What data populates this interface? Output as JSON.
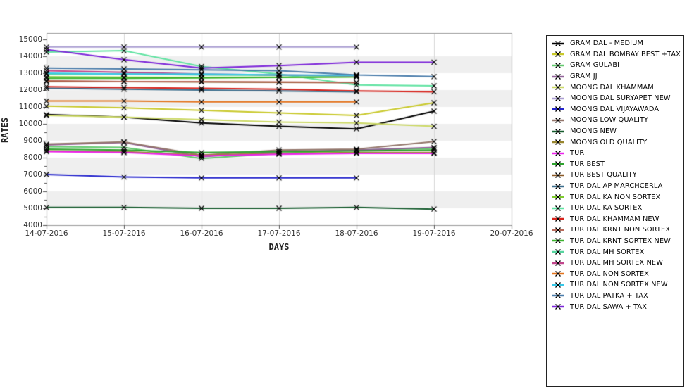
{
  "chart_data": {
    "type": "line",
    "title": "",
    "xlabel": "DAYS",
    "ylabel": "RATES",
    "ylim": [
      4000,
      15000
    ],
    "y_tick_step": 1000,
    "y_ticks": [
      "4000",
      "5000",
      "6000",
      "7000",
      "8000",
      "9000",
      "10000",
      "11000",
      "12000",
      "13000",
      "14000",
      "15000"
    ],
    "x_ticks": [
      "14-07-2016",
      "15-07-2016",
      "16-07-2016",
      "17-07-2016",
      "18-07-2016",
      "19-07-2016",
      "20-07-2016"
    ],
    "x": [
      "14-07-2016",
      "15-07-2016",
      "16-07-2016",
      "17-07-2016",
      "18-07-2016",
      "19-07-2016"
    ],
    "grid": "alternating horizontal bands, vertical gridlines per day",
    "legend_position": "right, boxed, clipped at bottom",
    "marker": {
      "shape": "x",
      "color": "#000000"
    },
    "colors": {
      "band_gray": "#efefef",
      "plot_border": "#9a9a9a",
      "vertical_gridline": "#d6d6d6",
      "axis_tick": "#555555",
      "legend_border": "#222222"
    },
    "series": [
      {
        "name": "GRAM DAL - MEDIUM",
        "color": "#000000",
        "values": [
          10550,
          10400,
          10050,
          9850,
          9700,
          10750
        ]
      },
      {
        "name": "GRAM DAL BOMBAY BEST +TAX",
        "color": "#c9c92a",
        "values": [
          11050,
          10950,
          10800,
          10650,
          10500,
          11250
        ]
      },
      {
        "name": "GRAM GULABI",
        "color": "#63c96f",
        "values": [
          8650,
          8600,
          7950,
          8250,
          8450,
          8550
        ]
      },
      {
        "name": "GRAM JJ",
        "color": "#93639a",
        "values": [
          8750,
          8900,
          8050,
          8350,
          8450,
          8600
        ]
      },
      {
        "name": "MOONG DAL KHAMMAM",
        "color": "#ccd966",
        "values": [
          10500,
          10400,
          10250,
          10100,
          10050,
          9850
        ]
      },
      {
        "name": "MOONG DAL SURYAPET NEW",
        "color": "#ab9ed2",
        "values": [
          14550,
          14550,
          14550,
          14550,
          14550,
          null
        ]
      },
      {
        "name": "MOONG DAL VIJAYAWADA",
        "color": "#2424cc",
        "values": [
          7000,
          6850,
          6800,
          6800,
          6800,
          null
        ]
      },
      {
        "name": "MOONG LOW QUALITY",
        "color": "#94766b",
        "values": [
          8800,
          8930,
          8150,
          8450,
          8500,
          8950
        ]
      },
      {
        "name": "MOONG NEW",
        "color": "#175c2e",
        "values": [
          5050,
          5050,
          5000,
          5000,
          5050,
          4950
        ]
      },
      {
        "name": "MOONG OLD QUALITY",
        "color": "#99862e",
        "values": [
          8400,
          8350,
          8150,
          8250,
          8300,
          8300
        ]
      },
      {
        "name": "TUR",
        "color": "#ee22ee",
        "values": [
          8350,
          8300,
          8100,
          8200,
          8250,
          8250
        ]
      },
      {
        "name": "TUR BEST",
        "color": "#2da32d",
        "values": [
          8500,
          8450,
          8300,
          8350,
          8400,
          8450
        ]
      },
      {
        "name": "TUR BEST QUALITY",
        "color": "#8a5a28",
        "values": [
          12500,
          12500,
          12480,
          12460,
          12440,
          null
        ]
      },
      {
        "name": "TUR DAL AP MARCHCERLA",
        "color": "#3a6d8c",
        "values": [
          12100,
          12050,
          12000,
          11950,
          11900,
          null
        ]
      },
      {
        "name": "TUR DAL KA NON SORTEX",
        "color": "#7ecb2d",
        "values": [
          12780,
          12760,
          12750,
          12760,
          12780,
          null
        ]
      },
      {
        "name": "TUR DAL KA SORTEX",
        "color": "#5fe3a1",
        "values": [
          14250,
          14330,
          13400,
          12950,
          12300,
          12250
        ]
      },
      {
        "name": "TUR DAL KHAMMAM NEW",
        "color": "#d8231c",
        "values": [
          12200,
          12150,
          12100,
          12050,
          11950,
          11900
        ]
      },
      {
        "name": "TUR DAL KRNT NON SORTEX",
        "color": "#b96a5a",
        "values": [
          12550,
          12500,
          12500,
          12480,
          12450,
          null
        ]
      },
      {
        "name": "TUR DAL KRNT SORTEX NEW",
        "color": "#3cb32e",
        "values": [
          12700,
          12700,
          12720,
          12750,
          12780,
          null
        ]
      },
      {
        "name": "TUR DAL MH SORTEX",
        "color": "#57d6a0",
        "values": [
          12950,
          12950,
          12900,
          12870,
          12830,
          null
        ]
      },
      {
        "name": "TUR DAL MH SORTEX NEW",
        "color": "#c2458c",
        "values": [
          13150,
          13050,
          12950,
          12900,
          12850,
          null
        ]
      },
      {
        "name": "TUR DAL NON SORTEX",
        "color": "#e4731c",
        "values": [
          11350,
          11350,
          11300,
          11300,
          11300,
          null
        ]
      },
      {
        "name": "TUR DAL NON SORTEX NEW",
        "color": "#38c8e8",
        "values": [
          13000,
          12950,
          12950,
          12900,
          12870,
          null
        ]
      },
      {
        "name": "TUR DAL PATKA + TAX",
        "color": "#4a7dab",
        "values": [
          13300,
          13250,
          13200,
          13150,
          12900,
          12800
        ]
      },
      {
        "name": "TUR DAL SAWA + TAX",
        "color": "#7d26d9",
        "values": [
          14400,
          13800,
          13300,
          13450,
          13650,
          13650
        ]
      }
    ]
  }
}
